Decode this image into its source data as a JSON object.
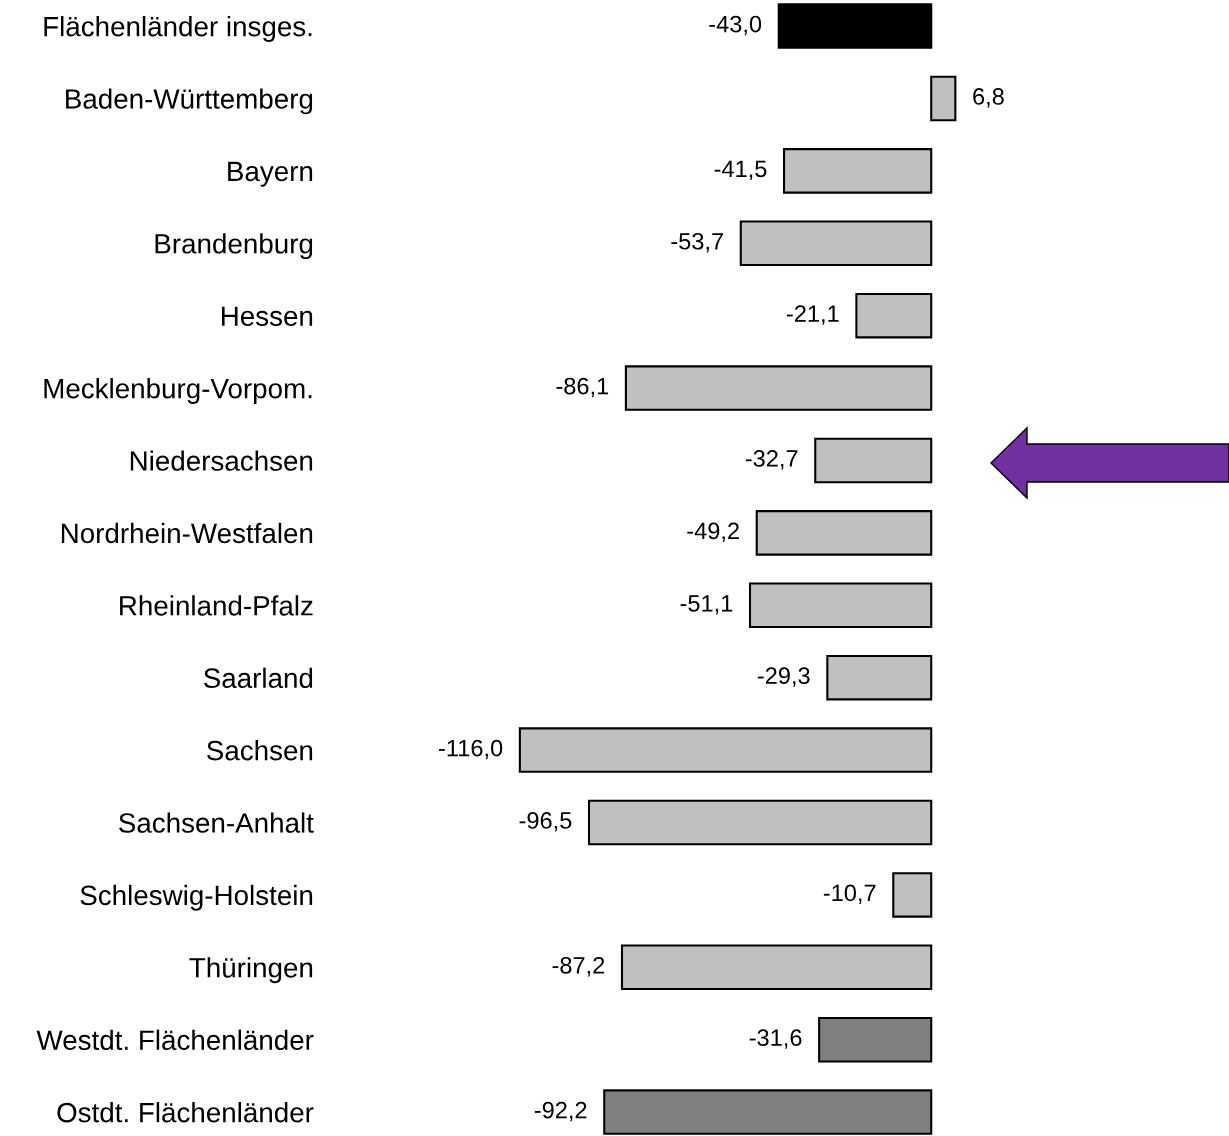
{
  "chart_data": {
    "type": "bar",
    "orientation": "horizontal",
    "categories": [
      "Flächenländer insges.",
      "Baden-Württemberg",
      "Bayern",
      "Brandenburg",
      "Hessen",
      "Mecklenburg-Vorpom.",
      "Niedersachsen",
      "Nordrhein-Westfalen",
      "Rheinland-Pfalz",
      "Saarland",
      "Sachsen",
      "Sachsen-Anhalt",
      "Schleswig-Holstein",
      "Thüringen",
      "Westdt. Flächenländer",
      "Ostdt. Flächenländer"
    ],
    "values": [
      -43.0,
      6.8,
      -41.5,
      -53.7,
      -21.1,
      -86.1,
      -32.7,
      -49.2,
      -51.1,
      -29.3,
      -116.0,
      -96.5,
      -10.7,
      -87.2,
      -31.6,
      -92.2
    ],
    "value_labels": [
      "-43,0",
      "6,8",
      "-41,5",
      "-53,7",
      "-21,1",
      "-86,1",
      "-32,7",
      "-49,2",
      "-51,1",
      "-29,3",
      "-116,0",
      "-96,5",
      "-10,7",
      "-87,2",
      "-31,6",
      "-92,2"
    ],
    "colors": [
      "#000000",
      "#c0c0c0",
      "#c0c0c0",
      "#c0c0c0",
      "#c0c0c0",
      "#c0c0c0",
      "#c0c0c0",
      "#c0c0c0",
      "#c0c0c0",
      "#c0c0c0",
      "#c0c0c0",
      "#c0c0c0",
      "#c0c0c0",
      "#c0c0c0",
      "#808080",
      "#808080"
    ],
    "tick_labels": "y",
    "grid": false,
    "legend": false
  }
}
